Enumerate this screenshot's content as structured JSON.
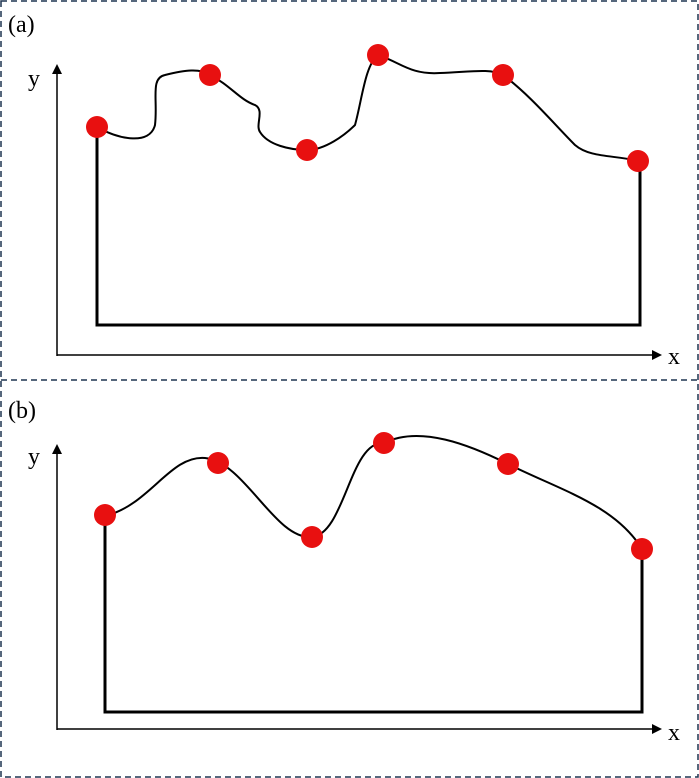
{
  "panels": [
    {
      "label": "(a)",
      "y_axis": "y",
      "x_axis": "x"
    },
    {
      "label": "(b)",
      "y_axis": "y",
      "x_axis": "x"
    }
  ]
}
